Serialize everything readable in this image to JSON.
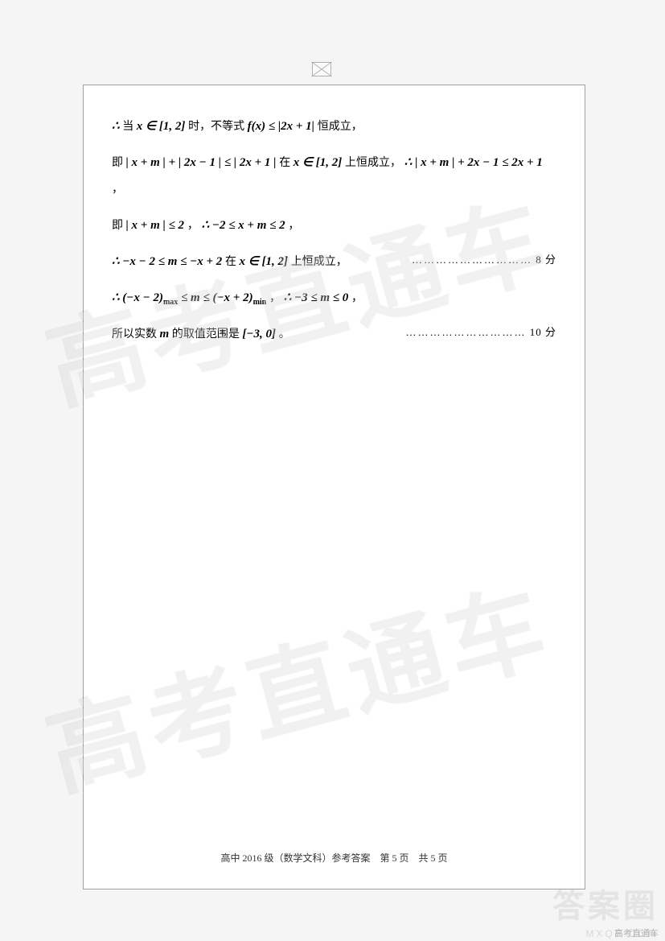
{
  "topPlaceholder": {
    "alt": "image-placeholder"
  },
  "mathLines": {
    "line1": {
      "prefix": "∴",
      "ch1": "当 ",
      "math1": "x ∈ [1, 2]",
      "ch2": " 时，不等式 ",
      "math2": "f(x) ≤ |2x + 1|",
      "ch3": " 恒成立，"
    },
    "line2": {
      "ch1": "即 ",
      "math1": "| x + m | + | 2x − 1 | ≤ | 2x + 1 |",
      "ch2": " 在 ",
      "math2": "x ∈ [1, 2]",
      "ch3": " 上恒成立，",
      "prefix2": "∴ ",
      "math3": "| x + m | + 2x − 1 ≤ 2x + 1",
      "ch4": "，"
    },
    "line3": {
      "ch1": "即 ",
      "math1": "| x + m | ≤ 2",
      "ch2": "，",
      "prefix2": "∴ ",
      "math2": "−2 ≤ x + m ≤ 2",
      "ch3": "，"
    },
    "line4": {
      "prefix": "∴ ",
      "math1": "−x − 2 ≤ m ≤ −x + 2",
      "ch1": " 在 ",
      "math2": "x ∈ [1, 2]",
      "ch2": " 上恒成立，",
      "score": "8 分",
      "dots": "…………………………"
    },
    "line5": {
      "prefix": "∴ ",
      "math1_a": "(−x − 2)",
      "sub1": "max",
      "math1_b": " ≤ m ≤ (−x + 2)",
      "sub2": "min",
      "ch1": "，",
      "prefix2": "∴ ",
      "math2": "−3 ≤ m ≤ 0",
      "ch2": "，"
    },
    "line6": {
      "ch1": "所以实数 ",
      "math1": "m",
      "ch2": " 的取值范围是 ",
      "math2": "[−3, 0]",
      "ch3": "。",
      "score": "10 分",
      "dots": "…………………………"
    }
  },
  "footer": {
    "text": "高中 2016 级（数学文科）参考答案　第 5 页　共 5 页"
  },
  "watermarks": {
    "main": "高考直通车",
    "bottomRight": "高考直通车",
    "answerCircle": "答案圈",
    "mxqe": "MXQE.COM"
  },
  "colors": {
    "background": "#f5f5f5",
    "pageBg": "#ffffff",
    "pageBorder": "#a0a0a0",
    "text": "#000000",
    "watermark": "rgba(0,0,0,0.04)"
  }
}
